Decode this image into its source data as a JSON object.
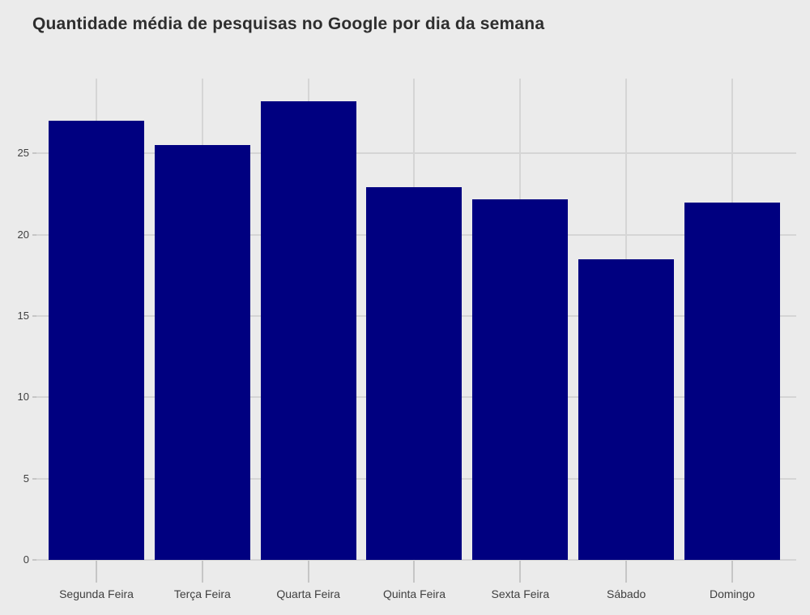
{
  "page": {
    "background_color": "#EBEBEB"
  },
  "chart_data": {
    "type": "bar",
    "title": "Quantidade média de pesquisas no Google por dia da semana",
    "categories": [
      "Segunda Feira",
      "Terça Feira",
      "Quarta Feira",
      "Quinta Feira",
      "Sexta Feira",
      "Sábado",
      "Domingo"
    ],
    "values": [
      27.0,
      25.5,
      28.2,
      22.9,
      22.2,
      18.5,
      22.0
    ],
    "xlabel": "",
    "ylabel": "",
    "yticks": [
      0,
      5,
      10,
      15,
      20,
      25
    ],
    "ylim": [
      0,
      29.6
    ],
    "grid": true,
    "grid_vertical_at_bar_centers": true,
    "legend": false,
    "colors": {
      "bar": "#000080",
      "background": "#EBEBEB",
      "gridline": "#D5D5D5",
      "tick": "#C6C6C6",
      "title_text": "#2E2E2E",
      "label_text": "#404040"
    }
  }
}
